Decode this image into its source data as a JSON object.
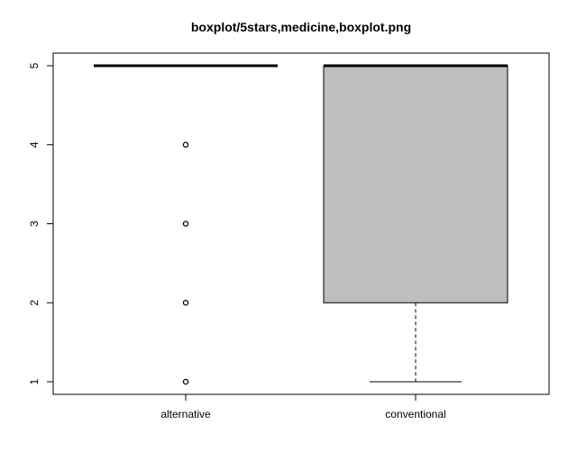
{
  "chart_data": {
    "type": "boxplot",
    "title": "boxplot/5stars,medicine,boxplot.png",
    "xlabel": "",
    "ylabel": "",
    "ylim": [
      1,
      5
    ],
    "yticks": [
      1,
      2,
      3,
      4,
      5
    ],
    "grid": false,
    "categories": [
      "alternative",
      "conventional"
    ],
    "boxes": [
      {
        "category": "alternative",
        "min": 5,
        "q1": 5,
        "median": 5,
        "q3": 5,
        "max": 5,
        "outliers": [
          1,
          2,
          3,
          4
        ],
        "fill": "#ffffff"
      },
      {
        "category": "conventional",
        "min": 1,
        "q1": 2,
        "median": 5,
        "q3": 5,
        "max": 5,
        "outliers": [],
        "fill": "#bebebe"
      }
    ]
  }
}
